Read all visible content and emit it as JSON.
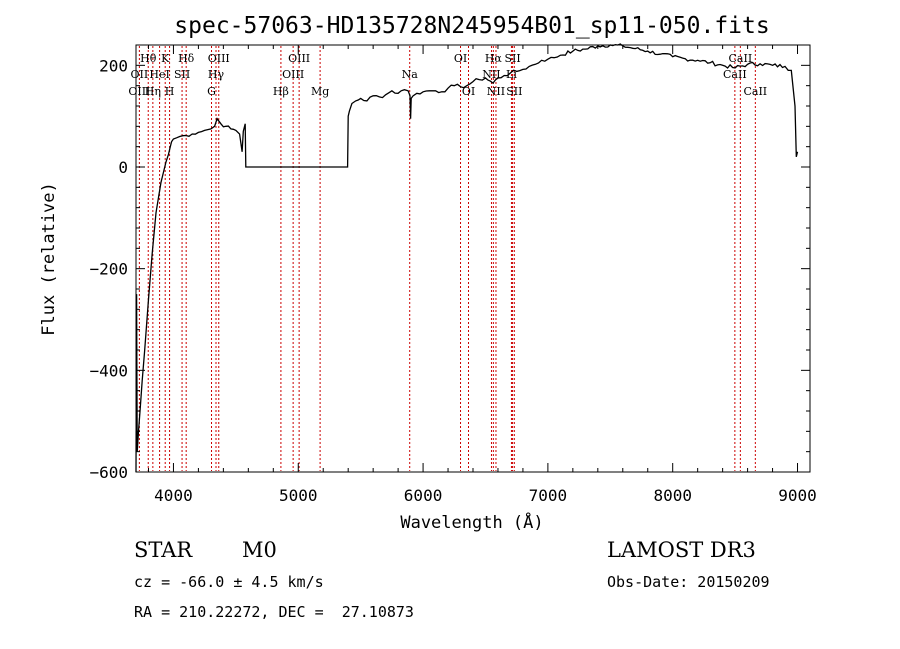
{
  "chart_data": {
    "type": "line",
    "title": "spec-57063-HD135728N245954B01_sp11-050.fits",
    "xlabel": "Wavelength (Å)",
    "ylabel": "Flux (relative)",
    "xlim": [
      3700,
      9100
    ],
    "ylim": [
      -600,
      240
    ],
    "xticks": [
      4000,
      5000,
      6000,
      7000,
      8000,
      9000
    ],
    "yticks": [
      -600,
      -400,
      -200,
      0,
      200
    ],
    "series": [
      {
        "name": "flux",
        "x": [
          3700,
          3705,
          3710,
          3720,
          3735,
          3750,
          3770,
          3800,
          3830,
          3860,
          3900,
          3940,
          3960,
          3975,
          3985,
          4000,
          4050,
          4100,
          4150,
          4200,
          4250,
          4300,
          4330,
          4350,
          4380,
          4420,
          4460,
          4500,
          4530,
          4550,
          4560,
          4575,
          4580,
          4585,
          5100,
          5300,
          5395,
          5400,
          5410,
          5430,
          5460,
          5500,
          5550,
          5600,
          5650,
          5700,
          5750,
          5800,
          5850,
          5880,
          5895,
          5900,
          5905,
          5920,
          5950,
          6000,
          6050,
          6100,
          6150,
          6200,
          6250,
          6300,
          6350,
          6400,
          6450,
          6500,
          6560,
          6600,
          6650,
          6700,
          6750,
          6800,
          6850,
          6900,
          6950,
          7000,
          7050,
          7100,
          7200,
          7300,
          7400,
          7500,
          7600,
          7700,
          7800,
          7900,
          8000,
          8100,
          8200,
          8300,
          8400,
          8500,
          8600,
          8700,
          8800,
          8900,
          8950,
          8980,
          8990,
          9000
        ],
        "y": [
          -600,
          -250,
          -560,
          -520,
          -470,
          -420,
          -360,
          -260,
          -170,
          -90,
          -30,
          10,
          25,
          40,
          50,
          55,
          60,
          62,
          65,
          68,
          72,
          75,
          80,
          95,
          85,
          80,
          75,
          72,
          65,
          30,
          70,
          85,
          0,
          0,
          0,
          0,
          0,
          100,
          110,
          125,
          130,
          135,
          130,
          140,
          138,
          142,
          150,
          145,
          152,
          150,
          140,
          95,
          135,
          140,
          145,
          148,
          150,
          150,
          148,
          155,
          160,
          158,
          160,
          168,
          172,
          175,
          165,
          175,
          180,
          185,
          188,
          192,
          198,
          202,
          210,
          212,
          215,
          220,
          228,
          232,
          238,
          240,
          238,
          233,
          228,
          222,
          217,
          213,
          210,
          205,
          200,
          195,
          202,
          203,
          200,
          198,
          190,
          120,
          20,
          30
        ]
      }
    ],
    "lines": [
      {
        "label": "Hθ",
        "x": 3798,
        "row": 1
      },
      {
        "label": "OII",
        "x": 3727,
        "row": 2
      },
      {
        "label": "OIII",
        "x": 3727,
        "row": 3
      },
      {
        "label": "K",
        "x": 3934,
        "row": 1
      },
      {
        "label": "HeI",
        "x": 3889,
        "row": 2
      },
      {
        "label": "Hη",
        "x": 3835,
        "row": 3
      },
      {
        "label": "SII",
        "x": 4069,
        "row": 2
      },
      {
        "label": "H",
        "x": 3969,
        "row": 3
      },
      {
        "label": "Hδ",
        "x": 4102,
        "row": 1
      },
      {
        "label": "OIII",
        "x": 4363,
        "row": 1
      },
      {
        "label": "Hγ",
        "x": 4341,
        "row": 2
      },
      {
        "label": "G",
        "x": 4305,
        "row": 3
      },
      {
        "label": "OIII",
        "x": 5007,
        "row": 1
      },
      {
        "label": "OIII",
        "x": 4959,
        "row": 2
      },
      {
        "label": "Hβ",
        "x": 4861,
        "row": 3
      },
      {
        "label": "Mg",
        "x": 5175,
        "row": 3
      },
      {
        "label": "Na",
        "x": 5893,
        "row": 2
      },
      {
        "label": "OI",
        "x": 6300,
        "row": 1
      },
      {
        "label": "OI",
        "x": 6364,
        "row": 3
      },
      {
        "label": "Hα",
        "x": 6563,
        "row": 1
      },
      {
        "label": "SII",
        "x": 6717,
        "row": 1
      },
      {
        "label": "NII",
        "x": 6548,
        "row": 2
      },
      {
        "label": "Li",
        "x": 6708,
        "row": 2
      },
      {
        "label": "NII",
        "x": 6584,
        "row": 3
      },
      {
        "label": "SII",
        "x": 6731,
        "row": 3
      },
      {
        "label": "CaII",
        "x": 8542,
        "row": 1
      },
      {
        "label": "CaII",
        "x": 8498,
        "row": 2
      },
      {
        "label": "CaII",
        "x": 8662,
        "row": 3
      }
    ]
  },
  "info": {
    "class": "STAR",
    "subclass": "M0",
    "survey": "LAMOST DR3",
    "cz": "cz = -66.0 ± 4.5 km/s",
    "obs_date": "Obs-Date: 20150209",
    "coords": "RA = 210.22272, DEC =  27.10873"
  },
  "colors": {
    "line_marker": "#cc0000",
    "axis": "#000000",
    "spectrum": "#000000"
  }
}
